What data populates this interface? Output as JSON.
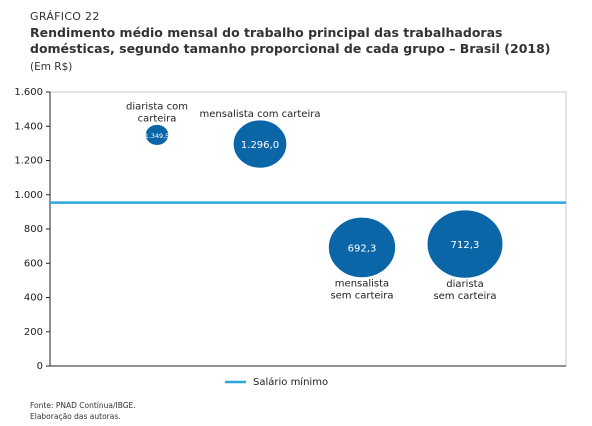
{
  "kicker": "GRÁFICO 22",
  "chart_data": {
    "type": "bubble",
    "title": "Rendimento médio mensal do trabalho principal das trabalhadoras domésticas, segundo tamanho proporcional de cada grupo – Brasil (2018)",
    "subtitle": "(Em R$)",
    "categories": [
      [
        "diarista com",
        "carteira"
      ],
      [
        "mensalista com carteira"
      ],
      [
        "mensalista",
        "sem carteira"
      ],
      [
        "diarista",
        "sem carteira"
      ]
    ],
    "values": [
      1349.5,
      1296.0,
      692.3,
      712.3
    ],
    "value_labels": [
      "1.349,5",
      "1.296,0",
      "692,3",
      "712,3"
    ],
    "sizes": [
      4,
      21,
      33,
      42
    ],
    "color": "#0b66a8",
    "ylim": [
      0,
      1600
    ],
    "yticks": [
      0,
      200,
      400,
      600,
      800,
      {
        "value": 1000,
        "label": "1.000"
      },
      {
        "value": 1200,
        "label": "1.200"
      },
      {
        "value": 1400,
        "label": "1.400"
      },
      {
        "value": 1600,
        "label": "1.600"
      }
    ],
    "reference_line": {
      "name": "Salário mínimo",
      "value": 954,
      "color": "#2aa8dc"
    },
    "legend": "bottom"
  },
  "notes": [
    "Fonte: PNAD Contínua/IBGE.",
    "Elaboração das autoras."
  ]
}
